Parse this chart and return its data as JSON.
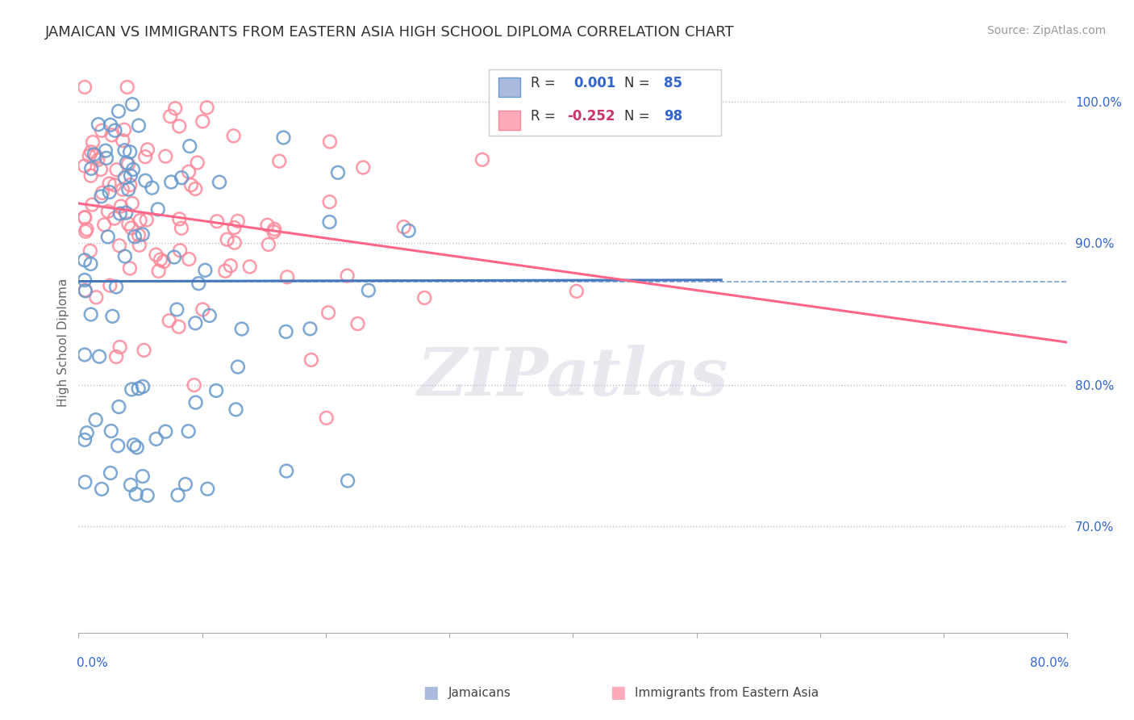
{
  "title": "JAMAICAN VS IMMIGRANTS FROM EASTERN ASIA HIGH SCHOOL DIPLOMA CORRELATION CHART",
  "source": "Source: ZipAtlas.com",
  "ylabel": "High School Diploma",
  "ytick_labels": [
    "70.0%",
    "80.0%",
    "90.0%",
    "100.0%"
  ],
  "ytick_values": [
    0.7,
    0.8,
    0.9,
    1.0
  ],
  "xlim": [
    0.0,
    0.8
  ],
  "ylim": [
    0.625,
    1.035
  ],
  "legend_label_blue": "Jamaicans",
  "legend_label_pink": "Immigrants from Eastern Asia",
  "color_blue_fill": "#AABBDD",
  "color_blue_edge": "#6699CC",
  "color_pink_fill": "#FFAABB",
  "color_pink_edge": "#FF8899",
  "color_blue_line": "#4477BB",
  "color_pink_line": "#FF6688",
  "color_blue_text": "#3366CC",
  "color_pink_text": "#CC3366",
  "color_n_text": "#3366CC",
  "title_fontsize": 13,
  "source_fontsize": 10,
  "background_color": "#FFFFFF",
  "grid_color": "#BBBBCC",
  "watermark": "ZIPatlas",
  "dashed_line_y": 0.873,
  "blue_line_x": [
    0.0,
    0.52
  ],
  "blue_line_y": [
    0.873,
    0.874
  ],
  "pink_line_x": [
    0.0,
    0.8
  ],
  "pink_line_y": [
    0.928,
    0.83
  ]
}
